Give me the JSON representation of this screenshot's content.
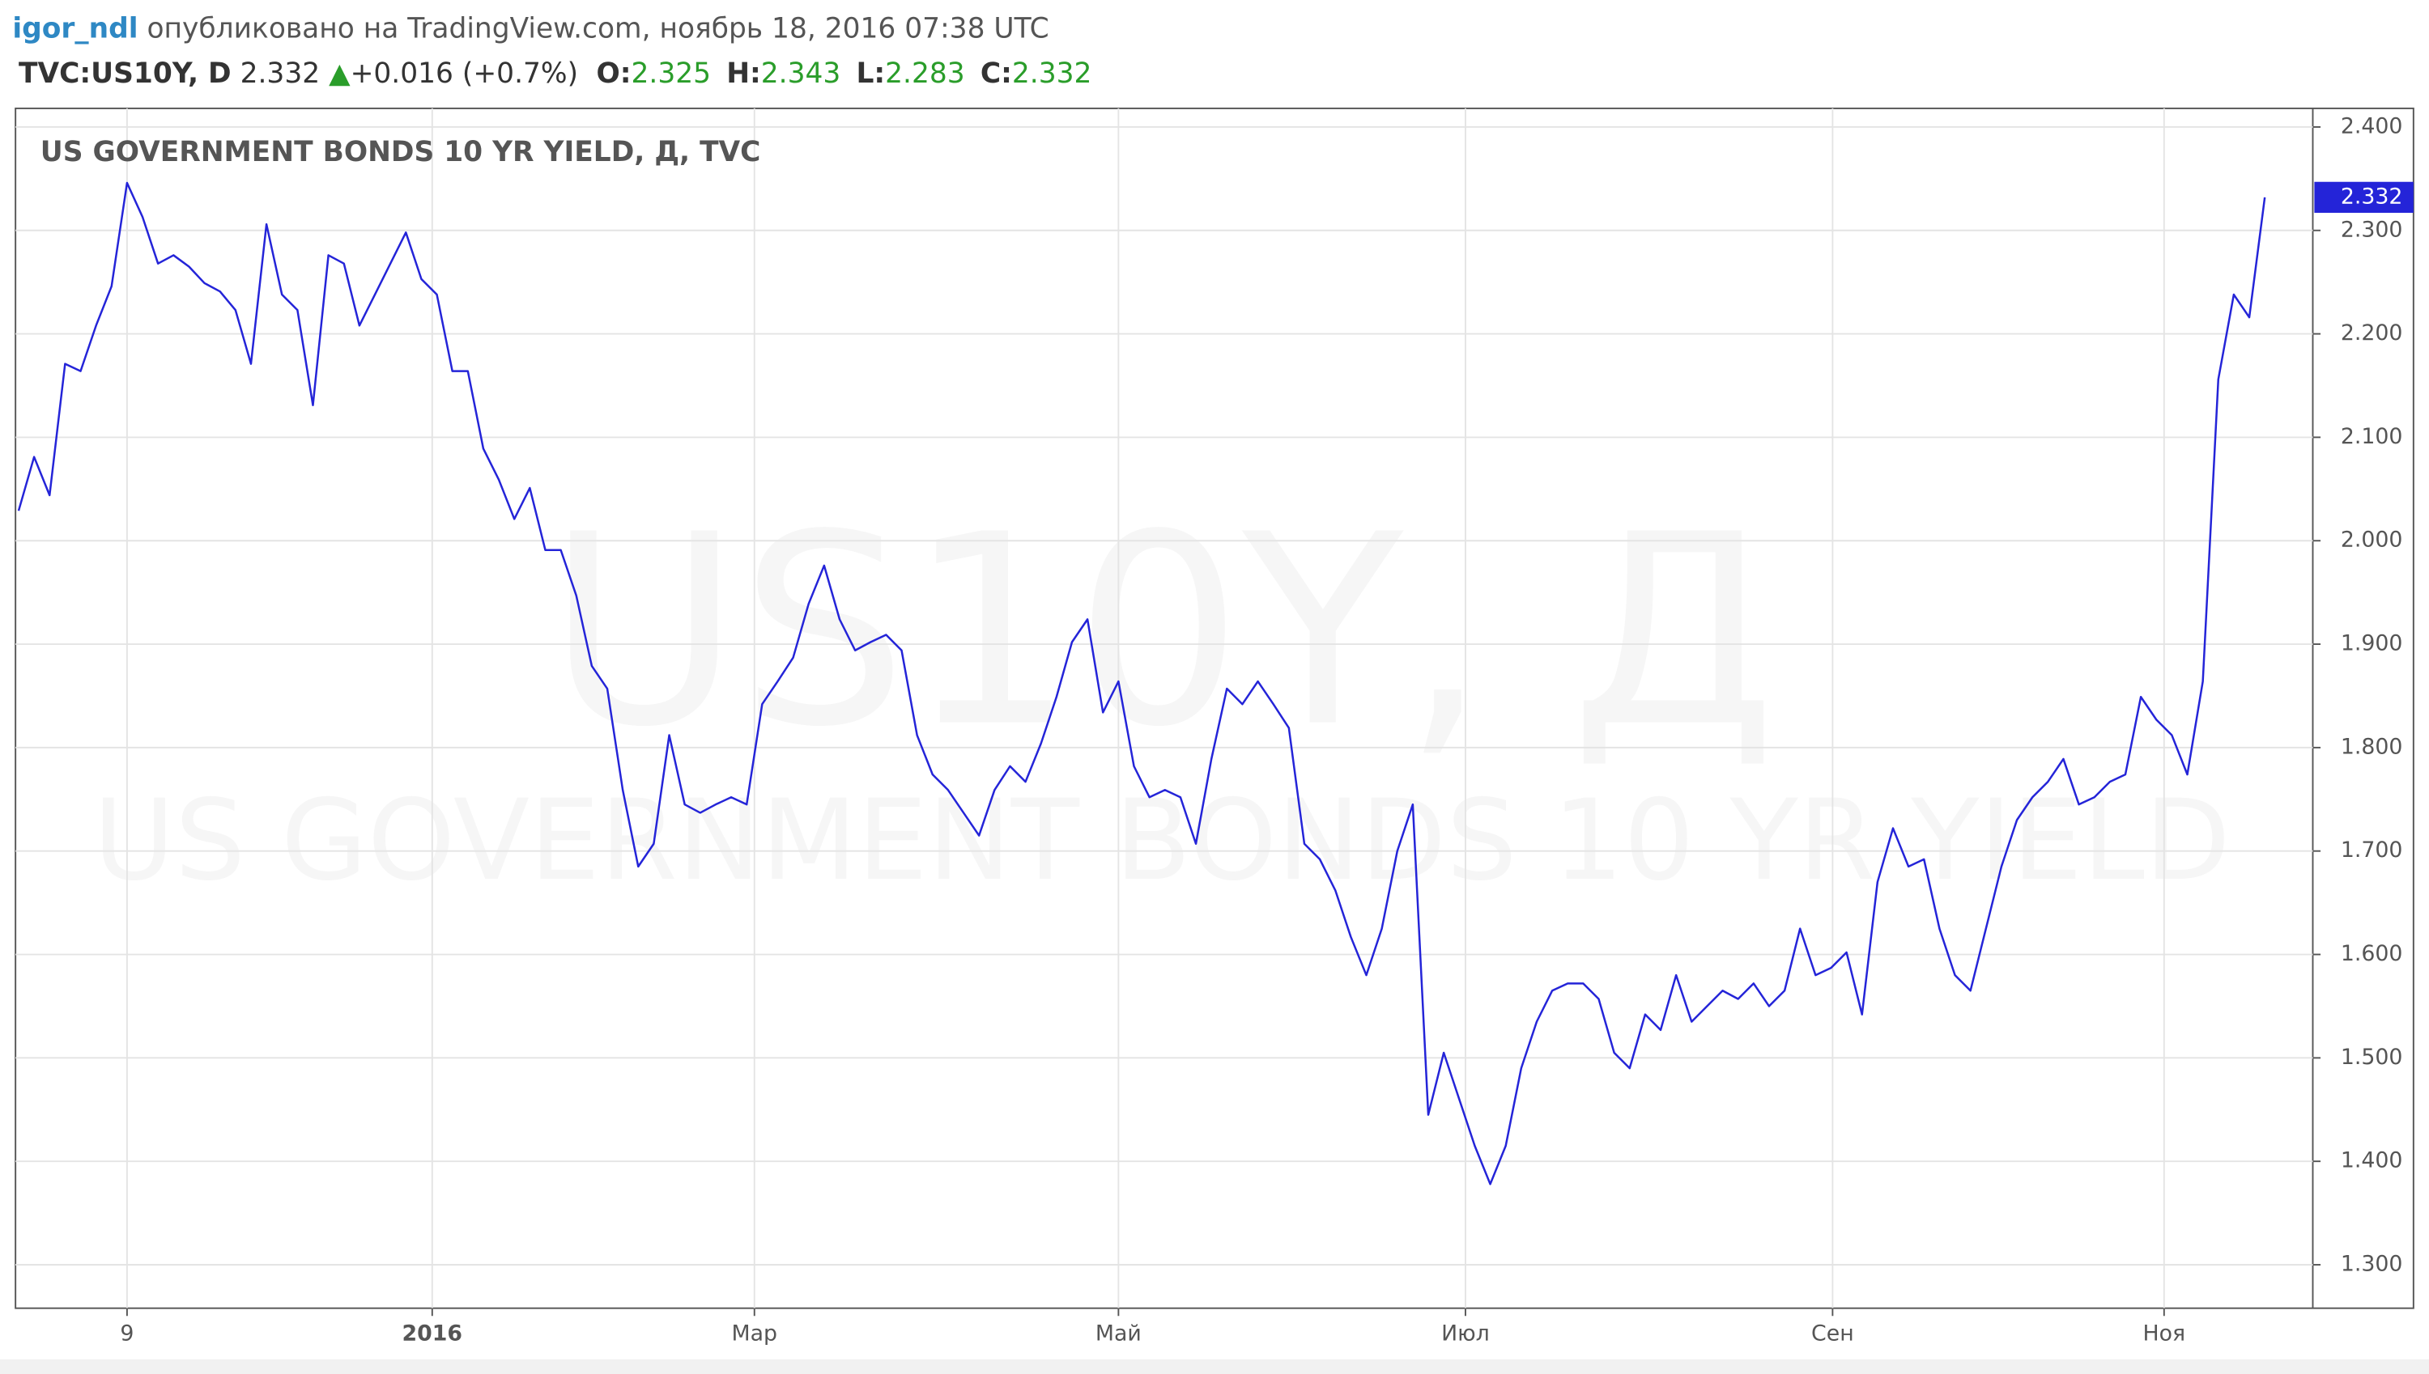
{
  "header": {
    "author": "igor_ndl",
    "published": "опубликовано на TradingView.com, ноябрь 18, 2016 07:38 UTC",
    "symbol": "TVC:US10Y, D",
    "last": "2.332",
    "change": "+0.016 (+0.7%)",
    "ohlc": [
      [
        "O:",
        "2.325"
      ],
      [
        "H:",
        "2.343"
      ],
      [
        "L:",
        "2.283"
      ],
      [
        "C:",
        "2.332"
      ]
    ]
  },
  "chart_data": {
    "type": "line",
    "title": "US GOVERNMENT BONDS 10 YR YIELD, Д, TVC",
    "watermark": [
      "US10Y, Д",
      "US GOVERNMENT BONDS 10 YR YIELD"
    ],
    "price_tag": "2.332",
    "xlim": [
      0,
      148.1
    ],
    "xticks": [
      {
        "value": 7,
        "label": "9"
      },
      {
        "value": 26.7,
        "label": "2016"
      },
      {
        "value": 47.5,
        "label": "Мар"
      },
      {
        "value": 71,
        "label": "Май"
      },
      {
        "value": 93.4,
        "label": "Июл"
      },
      {
        "value": 117.1,
        "label": "Сен"
      },
      {
        "value": 138.5,
        "label": "Ноя"
      }
    ],
    "ylim": [
      1.258,
      2.418
    ],
    "yticks": [
      {
        "value": 2.4,
        "label": "2.400"
      },
      {
        "value": 2.3,
        "label": "2.300"
      },
      {
        "value": 2.2,
        "label": "2.200"
      },
      {
        "value": 2.1,
        "label": "2.100"
      },
      {
        "value": 2.0,
        "label": "2.000"
      },
      {
        "value": 1.9,
        "label": "1.900"
      },
      {
        "value": 1.8,
        "label": "1.800"
      },
      {
        "value": 1.7,
        "label": "1.700"
      },
      {
        "value": 1.6,
        "label": "1.600"
      },
      {
        "value": 1.5,
        "label": "1.500"
      },
      {
        "value": 1.4,
        "label": "1.400"
      },
      {
        "value": 1.3,
        "label": "1.300"
      }
    ],
    "grid": true,
    "series": [
      {
        "color": "#2424d8",
        "values": [
          2.029,
          2.081,
          2.044,
          2.171,
          2.164,
          2.208,
          2.246,
          2.346,
          2.313,
          2.268,
          2.276,
          2.265,
          2.249,
          2.241,
          2.223,
          2.171,
          2.306,
          2.238,
          2.223,
          2.131,
          2.276,
          2.268,
          2.208,
          2.238,
          2.268,
          2.298,
          2.253,
          2.238,
          2.164,
          2.164,
          2.089,
          2.059,
          2.021,
          2.051,
          1.991,
          1.991,
          1.947,
          1.879,
          1.857,
          1.759,
          1.685,
          1.707,
          1.812,
          1.745,
          1.737,
          1.745,
          1.752,
          1.745,
          1.842,
          1.864,
          1.887,
          1.939,
          1.976,
          1.924,
          1.894,
          1.902,
          1.909,
          1.894,
          1.812,
          1.774,
          1.759,
          1.737,
          1.715,
          1.759,
          1.782,
          1.767,
          1.804,
          1.849,
          1.902,
          1.924,
          1.834,
          1.864,
          1.782,
          1.752,
          1.759,
          1.752,
          1.707,
          1.789,
          1.857,
          1.842,
          1.864,
          1.842,
          1.819,
          1.707,
          1.692,
          1.662,
          1.617,
          1.58,
          1.625,
          1.7,
          1.745,
          1.445,
          1.505,
          1.46,
          1.415,
          1.378,
          1.415,
          1.49,
          1.535,
          1.565,
          1.572,
          1.572,
          1.557,
          1.505,
          1.49,
          1.542,
          1.527,
          1.58,
          1.535,
          1.55,
          1.565,
          1.557,
          1.572,
          1.55,
          1.565,
          1.625,
          1.58,
          1.587,
          1.602,
          1.542,
          1.67,
          1.722,
          1.685,
          1.692,
          1.625,
          1.58,
          1.565,
          1.625,
          1.685,
          1.73,
          1.752,
          1.767,
          1.789,
          1.745,
          1.752,
          1.767,
          1.774,
          1.849,
          1.827,
          1.812,
          1.774,
          1.864,
          2.156,
          2.238,
          2.216,
          2.332
        ]
      }
    ]
  }
}
